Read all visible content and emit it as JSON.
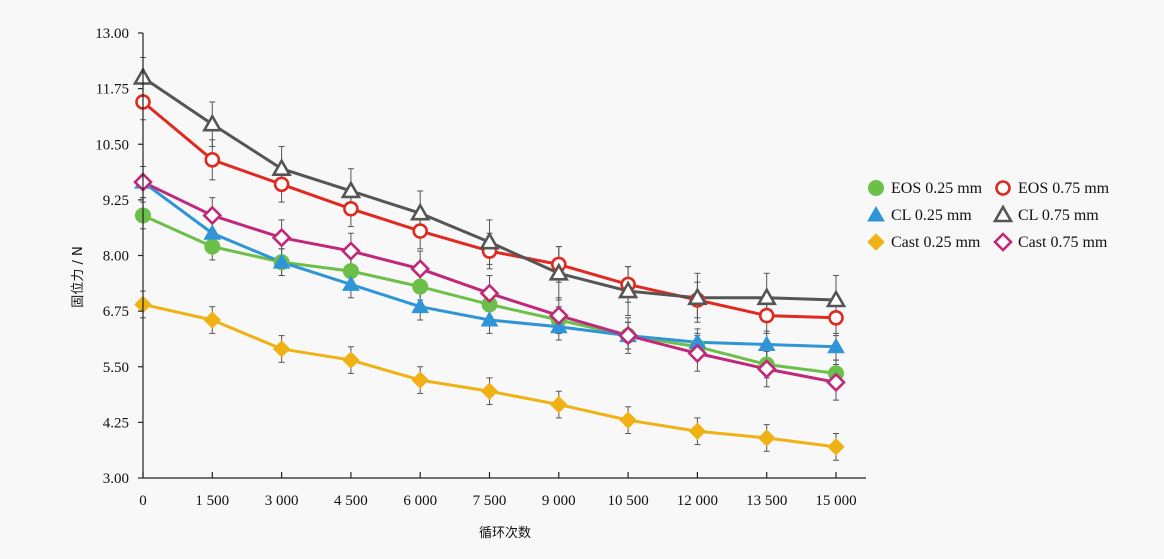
{
  "chart_data": {
    "type": "line",
    "title": "",
    "xlabel": "循环次数",
    "ylabel": "固位力 / N",
    "x": [
      0,
      1500,
      3000,
      4500,
      6000,
      7500,
      9000,
      10500,
      12000,
      13500,
      15000
    ],
    "x_tick_labels": [
      "0",
      "1 500",
      "3 000",
      "4 500",
      "6 000",
      "7 500",
      "9 000",
      "10 500",
      "12 000",
      "13 500",
      "15 000"
    ],
    "y_ticks": [
      3.0,
      4.25,
      5.5,
      6.75,
      8.0,
      9.25,
      10.5,
      11.75,
      13.0
    ],
    "y_tick_labels": [
      "3.00",
      "4.25",
      "5.50",
      "6.75",
      "8.00",
      "9.25",
      "10.50",
      "11.75",
      "13.00"
    ],
    "ylim": [
      3.0,
      13.0
    ],
    "grid": false,
    "legend_position": "right",
    "series": [
      {
        "name": "EOS 0.25 mm",
        "color": "#6cc04a",
        "marker": "circle-filled",
        "values": [
          8.9,
          8.2,
          7.85,
          7.65,
          7.3,
          6.9,
          6.55,
          6.2,
          5.95,
          5.55,
          5.35
        ],
        "errors": [
          0.3,
          0.3,
          0.3,
          0.3,
          0.3,
          0.3,
          0.3,
          0.3,
          0.3,
          0.3,
          0.3
        ]
      },
      {
        "name": "EOS 0.75 mm",
        "color": "#e02a20",
        "marker": "circle-open",
        "values": [
          11.45,
          10.15,
          9.6,
          9.05,
          8.55,
          8.1,
          7.8,
          7.35,
          7.0,
          6.65,
          6.6
        ],
        "errors": [
          0.4,
          0.45,
          0.4,
          0.4,
          0.4,
          0.4,
          0.4,
          0.4,
          0.4,
          0.4,
          0.4
        ]
      },
      {
        "name": "CL 0.25 mm",
        "color": "#2f95d6",
        "marker": "triangle-filled",
        "values": [
          9.65,
          8.5,
          7.85,
          7.35,
          6.85,
          6.55,
          6.4,
          6.2,
          6.05,
          6.0,
          5.95
        ],
        "errors": [
          0.35,
          0.3,
          0.3,
          0.3,
          0.3,
          0.3,
          0.3,
          0.3,
          0.3,
          0.3,
          0.3
        ]
      },
      {
        "name": "CL 0.75 mm",
        "color": "#555555",
        "marker": "triangle-open",
        "values": [
          12.0,
          10.95,
          9.95,
          9.45,
          8.95,
          8.3,
          7.6,
          7.2,
          7.05,
          7.05,
          7.0
        ],
        "errors": [
          0.45,
          0.5,
          0.5,
          0.5,
          0.5,
          0.5,
          0.6,
          0.55,
          0.55,
          0.55,
          0.55
        ]
      },
      {
        "name": "Cast 0.25 mm",
        "color": "#f0b114",
        "marker": "diamond-filled",
        "values": [
          6.9,
          6.55,
          5.9,
          5.65,
          5.2,
          4.95,
          4.65,
          4.3,
          4.05,
          3.9,
          3.7
        ],
        "errors": [
          0.3,
          0.3,
          0.3,
          0.3,
          0.3,
          0.3,
          0.3,
          0.3,
          0.3,
          0.3,
          0.3
        ]
      },
      {
        "name": "Cast 0.75 mm",
        "color": "#c0287a",
        "marker": "diamond-open",
        "values": [
          9.65,
          8.9,
          8.4,
          8.1,
          7.7,
          7.15,
          6.65,
          6.2,
          5.8,
          5.45,
          5.15
        ],
        "errors": [
          0.35,
          0.4,
          0.4,
          0.4,
          0.4,
          0.4,
          0.4,
          0.4,
          0.4,
          0.4,
          0.4
        ]
      }
    ]
  }
}
